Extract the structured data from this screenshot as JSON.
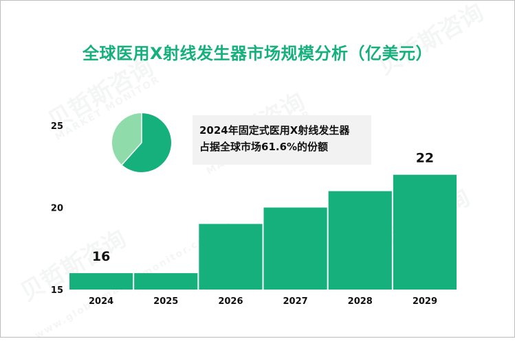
{
  "title": "全球医用X射线发生器市场规模分析（亿美元）",
  "watermark": {
    "brand": "贝哲斯咨询",
    "subtitle": "MARKET MONITOR",
    "url": "www.globalmarketmonitor.com.cn"
  },
  "callout": {
    "line1": "2024年固定式医用X射线发生器",
    "line2": "占据全球市场61.6%的份额"
  },
  "pie": {
    "share": 0.616,
    "colors": [
      "#16b07c",
      "#8fdcaa"
    ]
  },
  "colors": {
    "bar": "#16b07c",
    "title": "#16b07c",
    "text": "#111111"
  },
  "chart_data": {
    "type": "bar",
    "title": "全球医用X射线发生器市场规模分析（亿美元）",
    "categories": [
      "2024",
      "2025",
      "2026",
      "2027",
      "2028",
      "2029"
    ],
    "values": [
      16,
      16,
      19,
      20,
      21,
      22
    ],
    "data_labels": [
      {
        "index": 0,
        "text": "16"
      },
      {
        "index": 5,
        "text": "22"
      }
    ],
    "yticks": [
      15,
      20,
      25
    ],
    "ylim": [
      15,
      25
    ],
    "xlabel": "",
    "ylabel": "",
    "grid": false,
    "legend": "none"
  }
}
